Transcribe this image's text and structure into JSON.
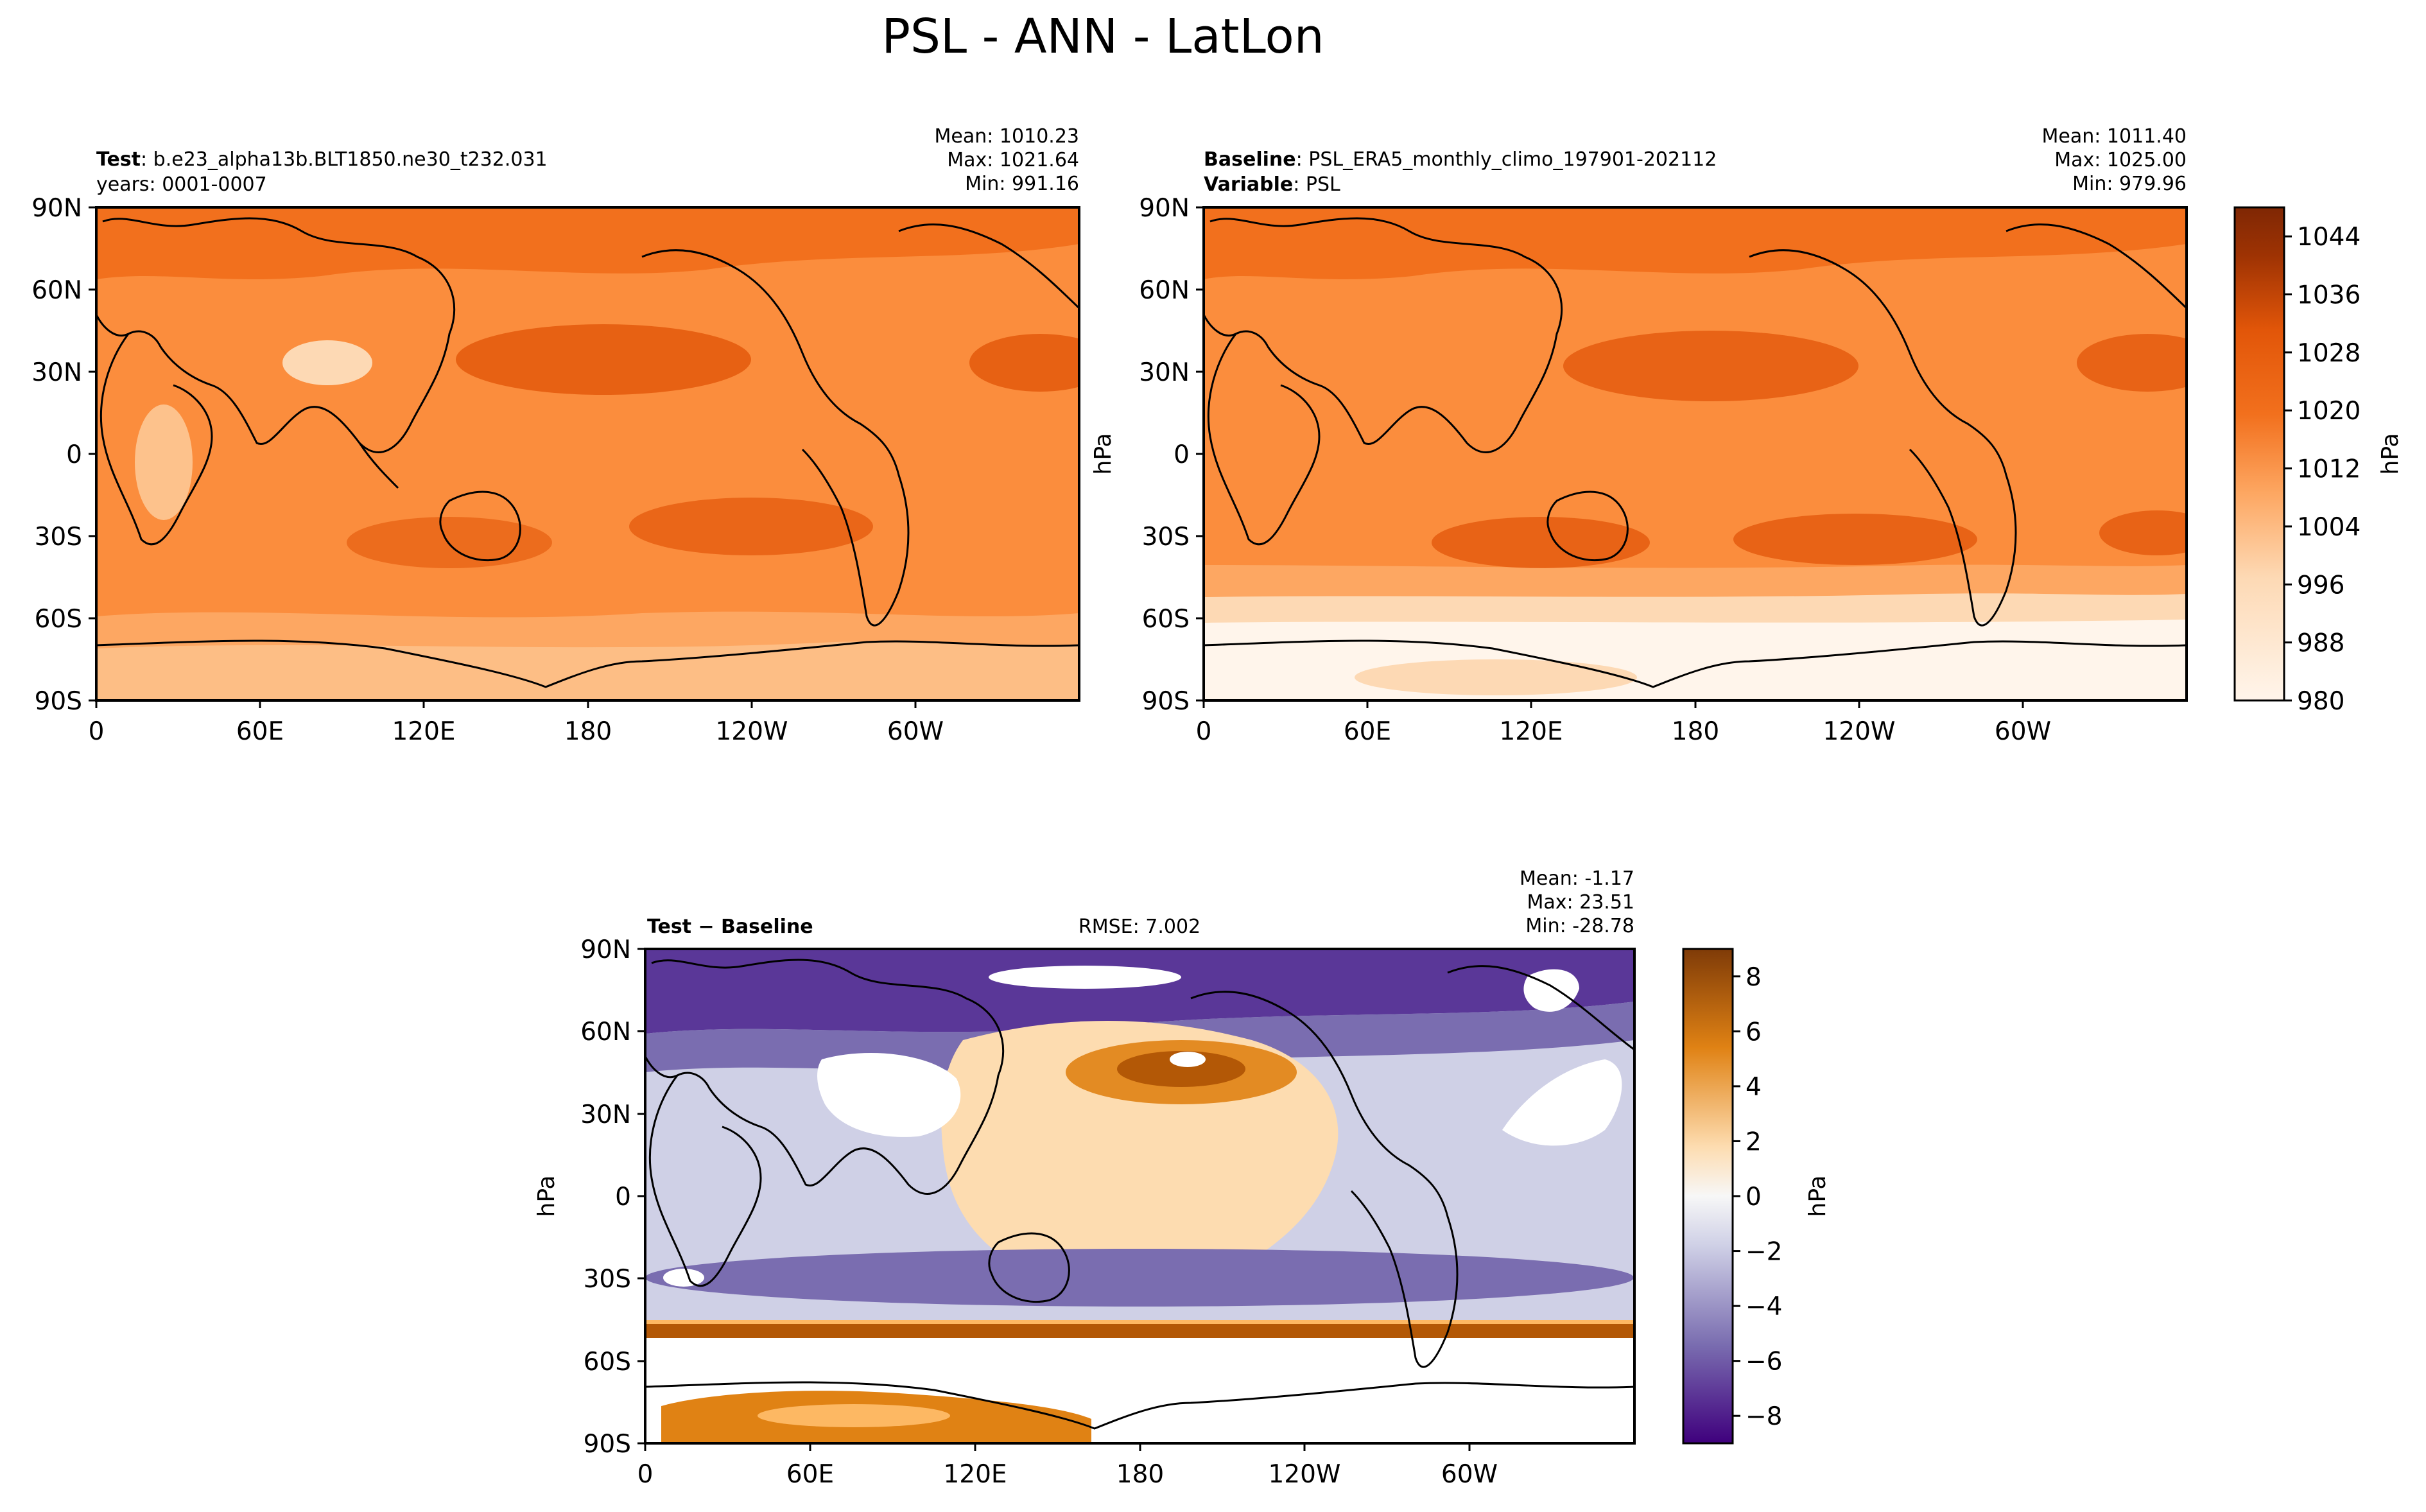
{
  "figure_title": "PSL - ANN - LatLon",
  "colors": {
    "oranges": [
      "#fff5eb",
      "#fee8d2",
      "#fdd9b4",
      "#fdc28c",
      "#fda762",
      "#fb8d3d",
      "#f2701d",
      "#e25609",
      "#c44103",
      "#9f3303",
      "#7f2704"
    ],
    "diverging": [
      "#3f007d",
      "#5a3798",
      "#7a6db0",
      "#a19fcb",
      "#cfd0e6",
      "#f7f7f7",
      "#fddcb0",
      "#fdb863",
      "#e08214",
      "#b35806",
      "#7f3b08"
    ],
    "white": "#ffffff",
    "coast": "#000000"
  },
  "panels": {
    "test": {
      "label": "Test",
      "desc": ": b.e23_alpha13b.BLT1850.ne30_t232.031",
      "line2": "years: 0001-0007",
      "mean": "Mean: 1010.23",
      "max": "Max: 1021.64",
      "min": "Min: 991.16"
    },
    "baseline": {
      "label": "Baseline",
      "desc": ": PSL_ERA5_monthly_climo_197901-202112",
      "var_label": "Variable",
      "var_desc": ": PSL",
      "mean": "Mean: 1011.40",
      "max": "Max: 1025.00",
      "min": "Min: 979.96"
    },
    "diff": {
      "label": "Test − Baseline",
      "rmse": "RMSE: 7.002",
      "mean": "Mean: -1.17",
      "max": "Max: 23.51",
      "min": "Min: -28.78"
    }
  },
  "axes": {
    "lon_ticks": [
      "0",
      "60E",
      "120E",
      "180",
      "120W",
      "60W"
    ],
    "lat_ticks": [
      "90N",
      "60N",
      "30N",
      "0",
      "30S",
      "60S",
      "90S"
    ]
  },
  "colorbar_main": {
    "unit": "hPa",
    "tick_labels": [
      "1044",
      "1036",
      "1028",
      "1020",
      "1012",
      "1004",
      "996",
      "988",
      "980"
    ],
    "range": [
      980,
      1048
    ]
  },
  "colorbar_diff": {
    "unit": "hPa",
    "tick_labels": [
      "8",
      "6",
      "4",
      "2",
      "0",
      "−2",
      "−4",
      "−6",
      "−8"
    ],
    "range": [
      -9,
      9
    ]
  },
  "diff_ylabel": "hPa",
  "chart_data": [
    {
      "type": "heatmap",
      "panel": "Test",
      "variable": "PSL",
      "units": "hPa",
      "x_ticks": [
        "0",
        "60E",
        "120E",
        "180",
        "120W",
        "60W"
      ],
      "y_ticks": [
        "90N",
        "60N",
        "30N",
        "0",
        "30S",
        "60S",
        "90S"
      ],
      "value_range": [
        980,
        1048
      ],
      "stats": {
        "mean": 1010.23,
        "max": 1021.64,
        "min": 991.16
      }
    },
    {
      "type": "heatmap",
      "panel": "Baseline",
      "variable": "PSL",
      "units": "hPa",
      "x_ticks": [
        "0",
        "60E",
        "120E",
        "180",
        "120W",
        "60W"
      ],
      "y_ticks": [
        "90N",
        "60N",
        "30N",
        "0",
        "30S",
        "60S",
        "90S"
      ],
      "value_range": [
        980,
        1048
      ],
      "stats": {
        "mean": 1011.4,
        "max": 1025.0,
        "min": 979.96
      }
    },
    {
      "type": "heatmap",
      "panel": "Test - Baseline",
      "variable": "PSL",
      "units": "hPa",
      "x_ticks": [
        "0",
        "60E",
        "120E",
        "180",
        "120W",
        "60W"
      ],
      "y_ticks": [
        "90N",
        "60N",
        "30N",
        "0",
        "30S",
        "60S",
        "90S"
      ],
      "value_range": [
        -9,
        9
      ],
      "stats": {
        "mean": -1.17,
        "max": 23.51,
        "min": -28.78,
        "rmse": 7.002
      }
    }
  ]
}
